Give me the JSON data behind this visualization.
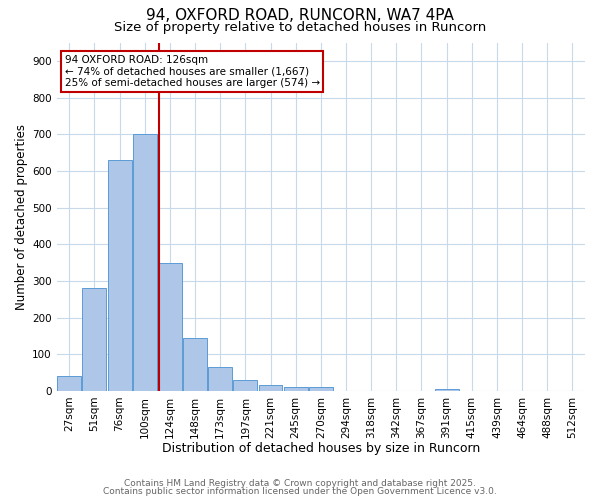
{
  "title1": "94, OXFORD ROAD, RUNCORN, WA7 4PA",
  "title2": "Size of property relative to detached houses in Runcorn",
  "xlabel": "Distribution of detached houses by size in Runcorn",
  "ylabel": "Number of detached properties",
  "categories": [
    "27sqm",
    "51sqm",
    "76sqm",
    "100sqm",
    "124sqm",
    "148sqm",
    "173sqm",
    "197sqm",
    "221sqm",
    "245sqm",
    "270sqm",
    "294sqm",
    "318sqm",
    "342sqm",
    "367sqm",
    "391sqm",
    "415sqm",
    "439sqm",
    "464sqm",
    "488sqm",
    "512sqm"
  ],
  "values": [
    40,
    280,
    630,
    700,
    350,
    145,
    65,
    30,
    15,
    10,
    10,
    0,
    0,
    0,
    0,
    5,
    0,
    0,
    0,
    0,
    0
  ],
  "bar_color": "#aec6e8",
  "bar_edge_color": "#5b9bd5",
  "vline_color": "#c00000",
  "vline_pos": 3.58,
  "annotation_text": "94 OXFORD ROAD: 126sqm\n← 74% of detached houses are smaller (1,667)\n25% of semi-detached houses are larger (574) →",
  "annotation_box_color": "#ffffff",
  "annotation_box_edge": "#c00000",
  "ylim": [
    0,
    950
  ],
  "yticks": [
    0,
    100,
    200,
    300,
    400,
    500,
    600,
    700,
    800,
    900
  ],
  "footnote1": "Contains HM Land Registry data © Crown copyright and database right 2025.",
  "footnote2": "Contains public sector information licensed under the Open Government Licence v3.0.",
  "bg_color": "#ffffff",
  "grid_color": "#c8daea",
  "title1_fontsize": 11,
  "title2_fontsize": 9.5,
  "xlabel_fontsize": 9,
  "ylabel_fontsize": 8.5,
  "tick_fontsize": 7.5,
  "annotation_fontsize": 7.5,
  "footnote_fontsize": 6.5,
  "footnote_color": "#666666"
}
